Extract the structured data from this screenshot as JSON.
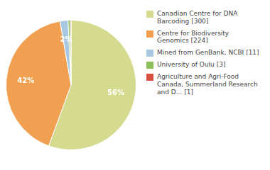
{
  "chart_data": {
    "type": "pie",
    "categories": [
      "Canadian Centre for DNA\nBarcoding [300]",
      "Centre for Biodiversity\nGenomics [224]",
      "Mined from GenBank, NCBI [11]",
      "University of Oulu [3]",
      "Agriculture and Agri-Food\nCanada, Summerland Research\nand D... [1]"
    ],
    "values": [
      56,
      42,
      2,
      0.56,
      0.19
    ],
    "value_labels": [
      "56%",
      "42%",
      "2%",
      null,
      null
    ],
    "data_labels": true,
    "colors": [
      "#d4db8e",
      "#f0a050",
      "#a8c8e0",
      "#8bbf5a",
      "#d95040"
    ],
    "legend": "right"
  }
}
